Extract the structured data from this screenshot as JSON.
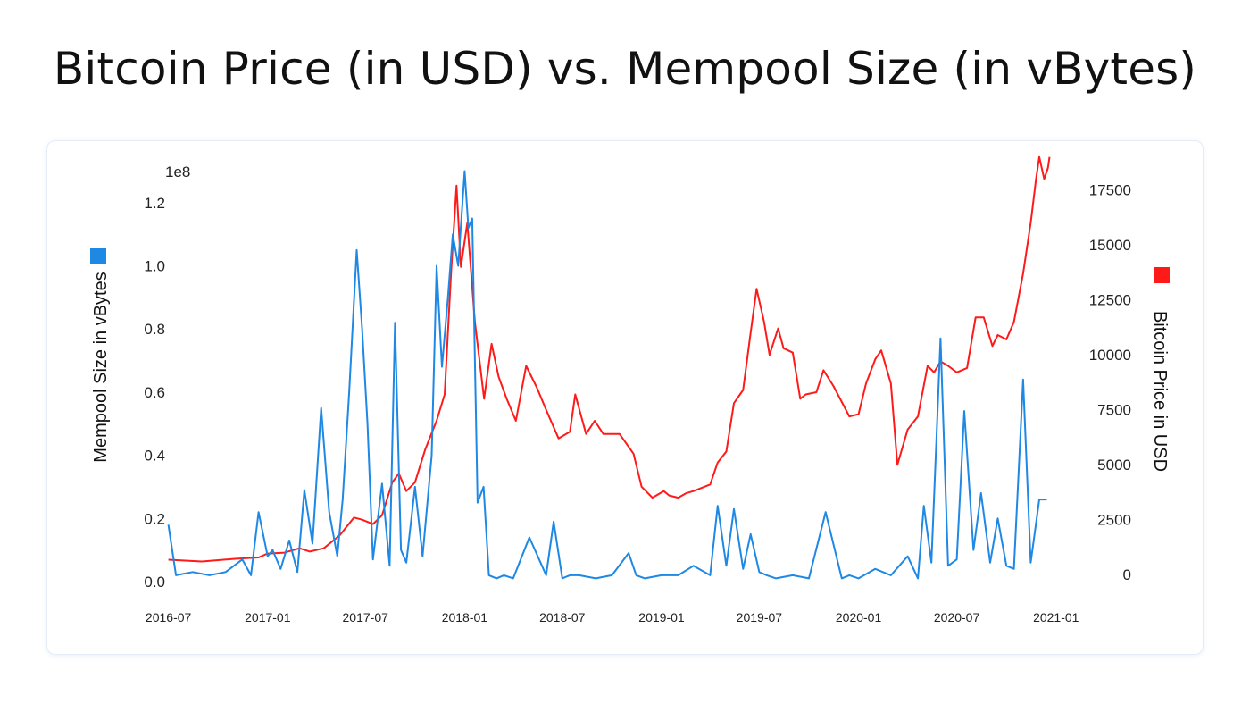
{
  "page": {
    "title": "Bitcoin Price (in USD) vs. Mempool Size (in vBytes)"
  },
  "colors": {
    "mempool": "#1e88e5",
    "price": "#ff1a1a",
    "card_border": "#e4ecf7"
  },
  "chart_data": {
    "type": "line",
    "title": "Bitcoin Price (in USD) vs. Mempool Size (in vBytes)",
    "grid": false,
    "x_ticks": [
      "2016-07",
      "2017-01",
      "2017-07",
      "2018-01",
      "2018-07",
      "2019-01",
      "2019-07",
      "2020-01",
      "2020-07",
      "2021-01"
    ],
    "x_range": [
      "2016-06-25",
      "2021-01-08"
    ],
    "y_left": {
      "label": "Mempool Size in vBytes",
      "offset_text": "1e8",
      "ticks": [
        0.0,
        0.2,
        0.4,
        0.6,
        0.8,
        1.0,
        1.2
      ],
      "tick_labels": [
        "0.0",
        "0.2",
        "0.4",
        "0.6",
        "0.8",
        "1.0",
        "1.2"
      ],
      "range": [
        -0.02,
        1.31
      ],
      "legend_color": "#1e88e5"
    },
    "y_right": {
      "label": "Bitcoin Price in USD",
      "ticks": [
        0,
        2500,
        5000,
        7500,
        10000,
        12500,
        15000,
        17500
      ],
      "tick_labels": [
        "0",
        "2500",
        "5000",
        "7500",
        "10000",
        "12500",
        "15000",
        "17500"
      ],
      "range": [
        -600,
        18500
      ],
      "legend_color": "#ff1a1a"
    },
    "series": [
      {
        "axis": "left",
        "color": "#1e88e5",
        "x": [
          "2016-07-01",
          "2016-07-15",
          "2016-08-15",
          "2016-09-15",
          "2016-10-15",
          "2016-11-15",
          "2016-12-01",
          "2016-12-15",
          "2017-01-01",
          "2017-01-10",
          "2017-01-25",
          "2017-02-10",
          "2017-02-25",
          "2017-03-10",
          "2017-03-25",
          "2017-04-10",
          "2017-04-25",
          "2017-05-10",
          "2017-05-20",
          "2017-06-01",
          "2017-06-15",
          "2017-06-25",
          "2017-07-05",
          "2017-07-15",
          "2017-08-01",
          "2017-08-15",
          "2017-08-25",
          "2017-09-05",
          "2017-09-15",
          "2017-10-01",
          "2017-10-15",
          "2017-11-01",
          "2017-11-10",
          "2017-11-20",
          "2017-12-01",
          "2017-12-10",
          "2017-12-20",
          "2018-01-01",
          "2018-01-08",
          "2018-01-15",
          "2018-01-25",
          "2018-02-05",
          "2018-02-15",
          "2018-03-01",
          "2018-03-15",
          "2018-04-01",
          "2018-05-01",
          "2018-06-01",
          "2018-06-15",
          "2018-07-01",
          "2018-07-15",
          "2018-08-01",
          "2018-09-01",
          "2018-10-01",
          "2018-11-01",
          "2018-11-15",
          "2018-12-01",
          "2019-01-01",
          "2019-02-01",
          "2019-03-01",
          "2019-04-01",
          "2019-04-15",
          "2019-05-01",
          "2019-05-15",
          "2019-06-01",
          "2019-06-15",
          "2019-07-01",
          "2019-07-15",
          "2019-08-01",
          "2019-09-01",
          "2019-10-01",
          "2019-11-01",
          "2019-12-01",
          "2019-12-15",
          "2020-01-01",
          "2020-02-01",
          "2020-03-01",
          "2020-04-01",
          "2020-04-20",
          "2020-05-01",
          "2020-05-15",
          "2020-06-01",
          "2020-06-15",
          "2020-07-01",
          "2020-07-15",
          "2020-08-01",
          "2020-08-15",
          "2020-09-01",
          "2020-09-15",
          "2020-10-01",
          "2020-10-15",
          "2020-11-01",
          "2020-11-15",
          "2020-12-01",
          "2020-12-15"
        ],
        "values": [
          0.18,
          0.02,
          0.03,
          0.02,
          0.03,
          0.07,
          0.02,
          0.22,
          0.08,
          0.1,
          0.04,
          0.13,
          0.03,
          0.29,
          0.12,
          0.55,
          0.22,
          0.08,
          0.26,
          0.6,
          1.05,
          0.8,
          0.5,
          0.07,
          0.31,
          0.05,
          0.82,
          0.1,
          0.06,
          0.3,
          0.08,
          0.4,
          1.0,
          0.68,
          0.9,
          1.1,
          1.0,
          1.3,
          1.12,
          1.15,
          0.25,
          0.3,
          0.02,
          0.01,
          0.02,
          0.01,
          0.14,
          0.02,
          0.19,
          0.01,
          0.02,
          0.02,
          0.01,
          0.02,
          0.09,
          0.02,
          0.01,
          0.02,
          0.02,
          0.05,
          0.02,
          0.24,
          0.05,
          0.23,
          0.04,
          0.15,
          0.03,
          0.02,
          0.01,
          0.02,
          0.01,
          0.22,
          0.01,
          0.02,
          0.01,
          0.04,
          0.02,
          0.08,
          0.01,
          0.24,
          0.06,
          0.77,
          0.05,
          0.07,
          0.54,
          0.1,
          0.28,
          0.06,
          0.2,
          0.05,
          0.04,
          0.64,
          0.06,
          0.26,
          0.26
        ]
      },
      {
        "axis": "right",
        "color": "#ff1a1a",
        "x": [
          "2016-07-01",
          "2016-09-01",
          "2016-11-01",
          "2016-12-15",
          "2017-01-01",
          "2017-02-01",
          "2017-03-01",
          "2017-03-20",
          "2017-04-15",
          "2017-05-15",
          "2017-06-10",
          "2017-06-25",
          "2017-07-15",
          "2017-08-01",
          "2017-08-20",
          "2017-09-01",
          "2017-09-15",
          "2017-10-01",
          "2017-10-20",
          "2017-11-10",
          "2017-11-25",
          "2017-12-07",
          "2017-12-17",
          "2017-12-25",
          "2018-01-06",
          "2018-01-20",
          "2018-02-06",
          "2018-02-20",
          "2018-03-05",
          "2018-03-20",
          "2018-04-06",
          "2018-04-25",
          "2018-05-15",
          "2018-06-01",
          "2018-06-24",
          "2018-07-15",
          "2018-07-25",
          "2018-08-14",
          "2018-08-30",
          "2018-09-15",
          "2018-10-15",
          "2018-11-10",
          "2018-11-25",
          "2018-12-15",
          "2019-01-05",
          "2019-01-15",
          "2019-02-01",
          "2019-02-15",
          "2019-03-01",
          "2019-04-01",
          "2019-04-15",
          "2019-05-01",
          "2019-05-15",
          "2019-06-01",
          "2019-06-15",
          "2019-06-26",
          "2019-07-10",
          "2019-07-20",
          "2019-08-05",
          "2019-08-15",
          "2019-09-01",
          "2019-09-15",
          "2019-09-25",
          "2019-10-15",
          "2019-10-28",
          "2019-11-15",
          "2019-12-15",
          "2020-01-01",
          "2020-01-15",
          "2020-02-01",
          "2020-02-12",
          "2020-03-01",
          "2020-03-13",
          "2020-04-01",
          "2020-04-20",
          "2020-05-08",
          "2020-05-20",
          "2020-06-01",
          "2020-06-15",
          "2020-07-01",
          "2020-07-20",
          "2020-08-05",
          "2020-08-20",
          "2020-09-05",
          "2020-09-15",
          "2020-10-01",
          "2020-10-15",
          "2020-11-01",
          "2020-11-15",
          "2020-11-25",
          "2020-12-01",
          "2020-12-10",
          "2020-12-17",
          "2020-12-20"
        ],
        "values": [
          680,
          600,
          720,
          780,
          960,
          1000,
          1200,
          1050,
          1200,
          1800,
          2600,
          2500,
          2300,
          2700,
          4200,
          4600,
          3800,
          4200,
          5700,
          7000,
          8200,
          13800,
          17700,
          14000,
          16000,
          11500,
          8000,
          10500,
          9000,
          8000,
          7000,
          9500,
          8500,
          7500,
          6200,
          6500,
          8200,
          6400,
          7000,
          6400,
          6400,
          5500,
          4000,
          3500,
          3800,
          3600,
          3500,
          3700,
          3800,
          4100,
          5100,
          5600,
          7800,
          8400,
          11000,
          13000,
          11500,
          10000,
          11200,
          10300,
          10100,
          8000,
          8200,
          8300,
          9300,
          8600,
          7200,
          7300,
          8700,
          9800,
          10200,
          8700,
          5000,
          6600,
          7200,
          9500,
          9200,
          9700,
          9500,
          9200,
          9400,
          11700,
          11700,
          10400,
          10900,
          10700,
          11500,
          13700,
          16000,
          18000,
          19000,
          18000,
          18500,
          19000
        ]
      }
    ]
  }
}
